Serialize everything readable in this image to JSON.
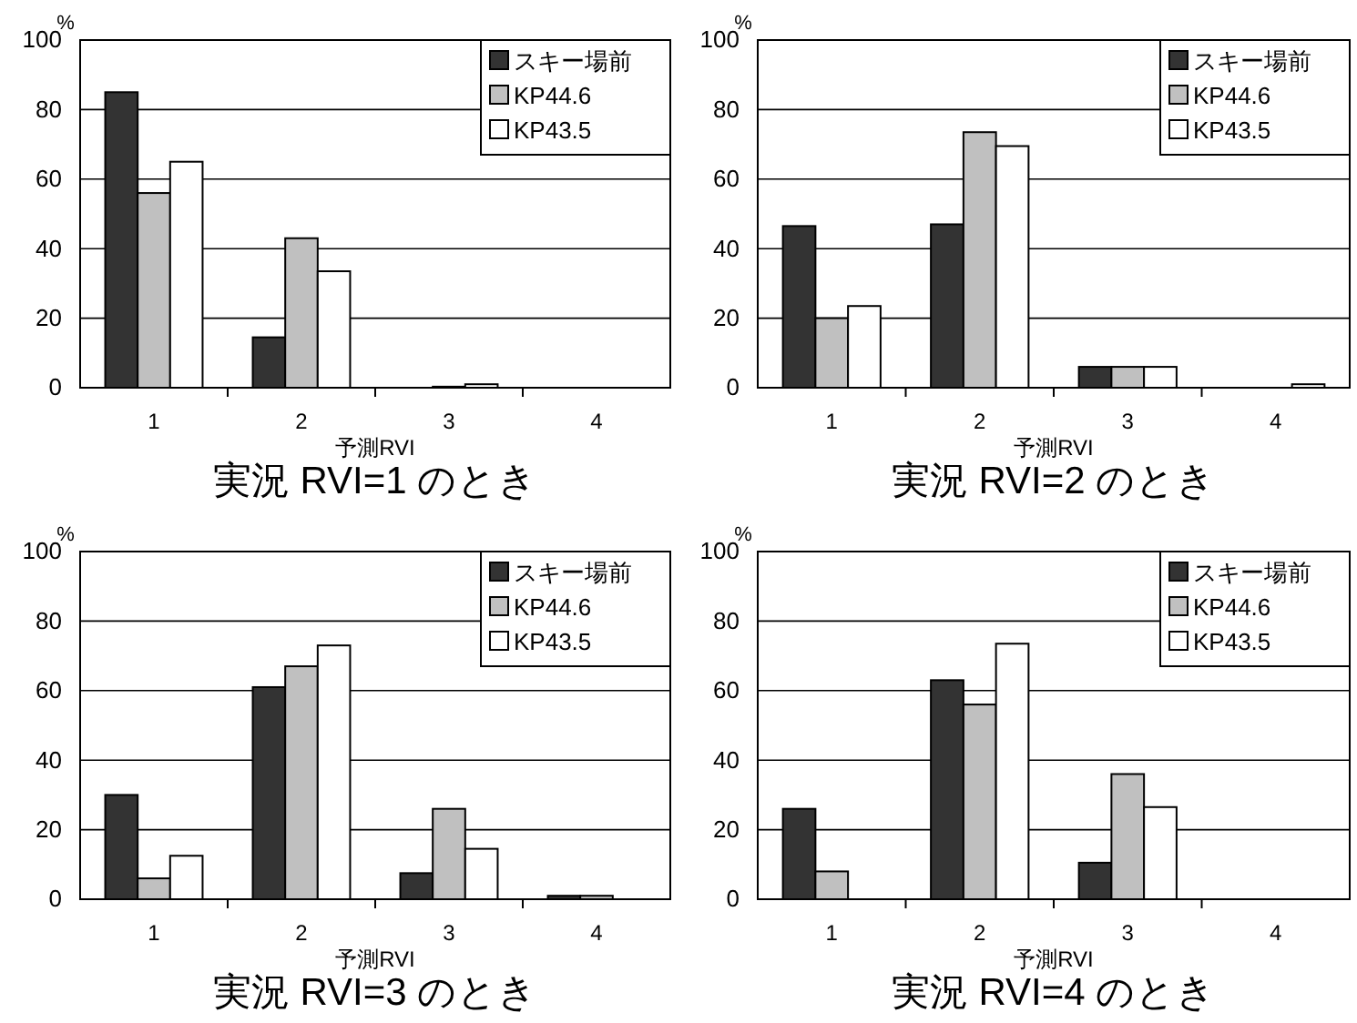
{
  "chart_data": [
    {
      "type": "bar",
      "title": "実況 RVI=1 のとき",
      "xlabel": "予測RVI",
      "ylabel": "%",
      "categories": [
        "1",
        "2",
        "3",
        "4"
      ],
      "ylim": [
        0,
        100
      ],
      "yticks": [
        0,
        20,
        40,
        60,
        80,
        100
      ],
      "grid": "y",
      "legend": "top right",
      "series": [
        {
          "name": "スキー場前",
          "color": "#333333",
          "values": [
            85,
            14.5,
            null,
            0
          ]
        },
        {
          "name": "KP44.6",
          "color": "#c0c0c0",
          "values": [
            56,
            43,
            0.3,
            0
          ]
        },
        {
          "name": "KP43.5",
          "color": "#ffffff",
          "values": [
            65,
            33.5,
            1,
            0
          ]
        }
      ]
    },
    {
      "type": "bar",
      "title": "実況 RVI=2 のとき",
      "xlabel": "予測RVI",
      "ylabel": "%",
      "categories": [
        "1",
        "2",
        "3",
        "4"
      ],
      "ylim": [
        0,
        100
      ],
      "yticks": [
        0,
        20,
        40,
        60,
        80,
        100
      ],
      "grid": "y",
      "legend": "top right",
      "series": [
        {
          "name": "スキー場前",
          "color": "#333333",
          "values": [
            46.5,
            47,
            6,
            0
          ]
        },
        {
          "name": "KP44.6",
          "color": "#c0c0c0",
          "values": [
            20,
            73.5,
            6,
            0
          ]
        },
        {
          "name": "KP43.5",
          "color": "#ffffff",
          "values": [
            23.5,
            69.5,
            6,
            1
          ]
        }
      ]
    },
    {
      "type": "bar",
      "title": "実況 RVI=3 のとき",
      "xlabel": "予測RVI",
      "ylabel": "%",
      "categories": [
        "1",
        "2",
        "3",
        "4"
      ],
      "ylim": [
        0,
        100
      ],
      "yticks": [
        0,
        20,
        40,
        60,
        80,
        100
      ],
      "grid": "y",
      "legend": "top right",
      "series": [
        {
          "name": "スキー場前",
          "color": "#333333",
          "values": [
            30,
            61,
            7.5,
            1
          ]
        },
        {
          "name": "KP44.6",
          "color": "#c0c0c0",
          "values": [
            6,
            67,
            26,
            1
          ]
        },
        {
          "name": "KP43.5",
          "color": "#ffffff",
          "values": [
            12.5,
            73,
            14.5,
            0
          ]
        }
      ]
    },
    {
      "type": "bar",
      "title": "実況 RVI=4 のとき",
      "xlabel": "予測RVI",
      "ylabel": "%",
      "categories": [
        "1",
        "2",
        "3",
        "4"
      ],
      "ylim": [
        0,
        100
      ],
      "yticks": [
        0,
        20,
        40,
        60,
        80,
        100
      ],
      "grid": "y",
      "legend": "top right",
      "series": [
        {
          "name": "スキー場前",
          "color": "#333333",
          "values": [
            26,
            63,
            10.5,
            0
          ]
        },
        {
          "name": "KP44.6",
          "color": "#c0c0c0",
          "values": [
            8,
            56,
            36,
            0
          ]
        },
        {
          "name": "KP43.5",
          "color": "#ffffff",
          "values": [
            0,
            73.5,
            26.5,
            0
          ]
        }
      ]
    }
  ]
}
